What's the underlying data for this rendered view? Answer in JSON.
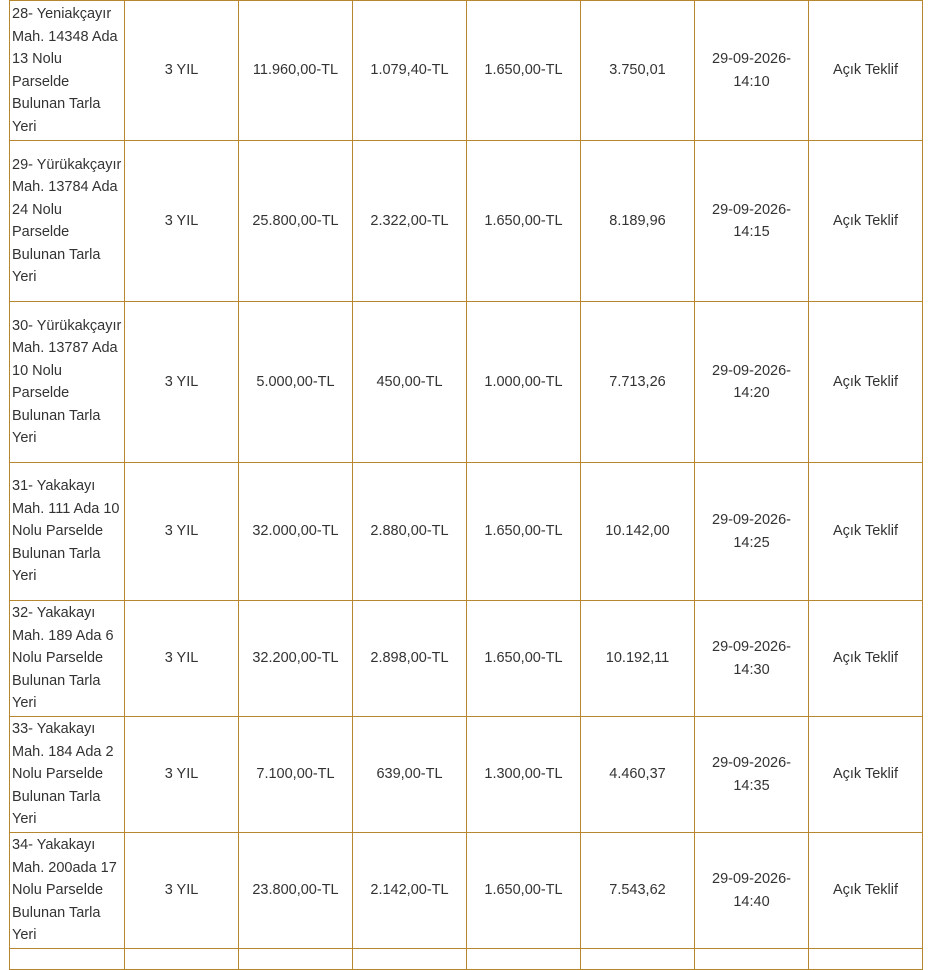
{
  "rows": [
    {
      "desc": "28- Yeniakçayır Mah. 14348 Ada 13 Nolu Parselde Bulunan Tarla Yeri",
      "term": "3 YIL",
      "price": "11.960,00-TL",
      "guarantee": "1.079,40-TL",
      "fee": "1.650,00-TL",
      "area": "3.750,01",
      "date": "29-09-2026-",
      "time": "14:10",
      "method": "Açık Teklif"
    },
    {
      "desc": "29- Yürükakçayır Mah. 13784 Ada 24 Nolu Parselde Bulunan Tarla Yeri",
      "term": "3 YIL",
      "price": "25.800,00-TL",
      "guarantee": "2.322,00-TL",
      "fee": "1.650,00-TL",
      "area": "8.189,96",
      "date": "29-09-2026-",
      "time": "14:15",
      "method": "Açık Teklif"
    },
    {
      "desc": "30- Yürükakçayır Mah. 13787 Ada 10 Nolu Parselde Bulunan Tarla Yeri",
      "term": "3 YIL",
      "price": "5.000,00-TL",
      "guarantee": "450,00-TL",
      "fee": "1.000,00-TL",
      "area": "7.713,26",
      "date": "29-09-2026-",
      "time": "14:20",
      "method": "Açık Teklif"
    },
    {
      "desc": "31- Yakakayı Mah. 111 Ada 10 Nolu Parselde Bulunan Tarla Yeri",
      "term": "3 YIL",
      "price": "32.000,00-TL",
      "guarantee": "2.880,00-TL",
      "fee": "1.650,00-TL",
      "area": "10.142,00",
      "date": "29-09-2026-",
      "time": "14:25",
      "method": "Açık Teklif"
    },
    {
      "desc": "32- Yakakayı Mah. 189 Ada 6 Nolu Parselde Bulunan Tarla Yeri",
      "term": "3 YIL",
      "price": "32.200,00-TL",
      "guarantee": "2.898,00-TL",
      "fee": "1.650,00-TL",
      "area": "10.192,11",
      "date": "29-09-2026-",
      "time": "14:30",
      "method": "Açık Teklif"
    },
    {
      "desc": "33- Yakakayı Mah. 184 Ada 2 Nolu Parselde Bulunan Tarla Yeri",
      "term": "3 YIL",
      "price": "7.100,00-TL",
      "guarantee": "639,00-TL",
      "fee": "1.300,00-TL",
      "area": "4.460,37",
      "date": "29-09-2026-",
      "time": "14:35",
      "method": "Açık Teklif"
    },
    {
      "desc": "34- Yakakayı Mah. 200ada 17 Nolu Parselde Bulunan Tarla Yeri",
      "term": "3 YIL",
      "price": "23.800,00-TL",
      "guarantee": "2.142,00-TL",
      "fee": "1.650,00-TL",
      "area": "7.543,62",
      "date": "29-09-2026-",
      "time": "14:40",
      "method": "Açık Teklif"
    }
  ]
}
